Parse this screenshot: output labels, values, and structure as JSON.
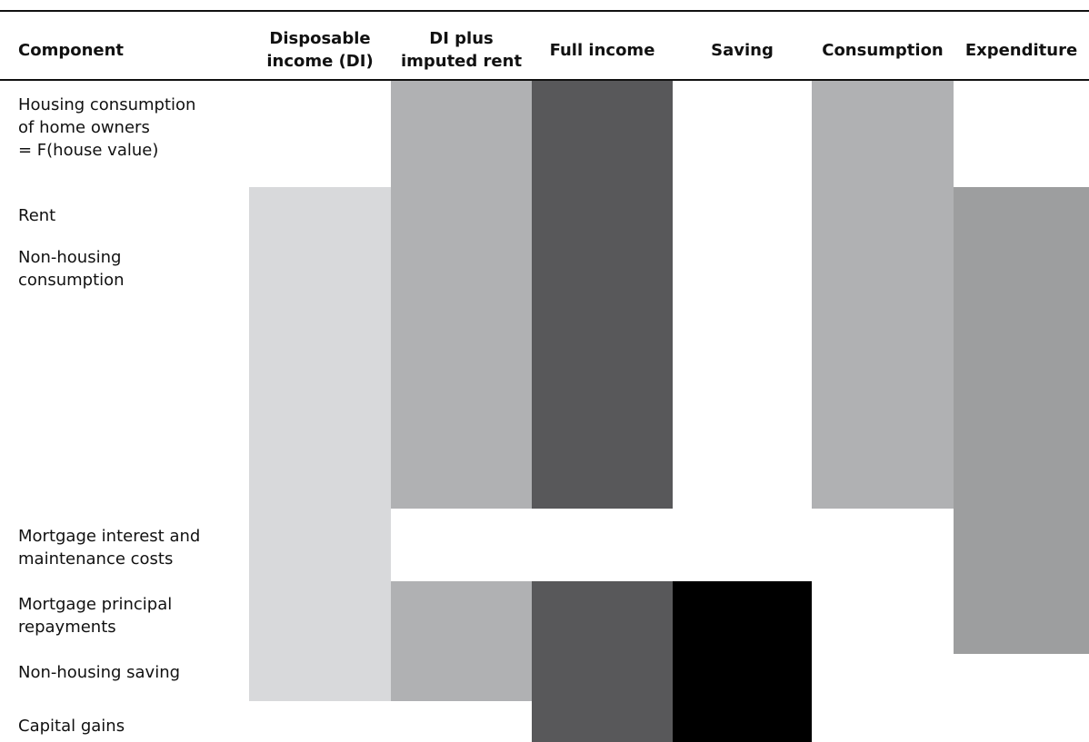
{
  "table": {
    "columns": [
      [
        "Component"
      ],
      [
        "Disposable",
        "income (DI)"
      ],
      [
        "DI plus",
        "imputed rent"
      ],
      [
        "Full income"
      ],
      [
        "Saving"
      ],
      [
        "Consumption"
      ],
      [
        "Expenditure"
      ]
    ],
    "rows": [
      [
        "Housing consumption",
        "of home owners",
        "= F(house value)"
      ],
      [
        "Rent"
      ],
      [
        "Non-housing",
        "consumption"
      ],
      [
        "Mortgage interest and",
        "maintenance costs"
      ],
      [
        "Mortgage principal",
        "repayments"
      ],
      [
        "Non-housing saving"
      ],
      [
        "Capital gains"
      ]
    ]
  }
}
